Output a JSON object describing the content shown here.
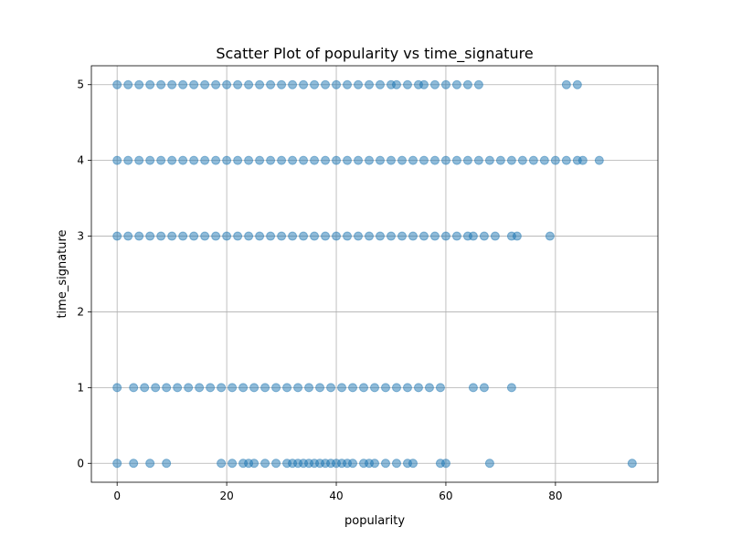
{
  "chart_data": {
    "type": "scatter",
    "title": "Scatter Plot of popularity vs time_signature",
    "xlabel": "popularity",
    "ylabel": "time_signature",
    "xlim": [
      -4.7,
      98.7
    ],
    "ylim": [
      -0.25,
      5.25
    ],
    "xticks": [
      0,
      20,
      40,
      60,
      80
    ],
    "yticks": [
      0,
      1,
      2,
      3,
      4,
      5
    ],
    "grid": true,
    "colors": {
      "marker": "#1f77b4",
      "grid": "#b0b0b0"
    },
    "marker_alpha": 0.5,
    "series": [
      {
        "points": [
          [
            0,
            5
          ],
          [
            2,
            5
          ],
          [
            4,
            5
          ],
          [
            6,
            5
          ],
          [
            8,
            5
          ],
          [
            10,
            5
          ],
          [
            12,
            5
          ],
          [
            14,
            5
          ],
          [
            16,
            5
          ],
          [
            18,
            5
          ],
          [
            20,
            5
          ],
          [
            22,
            5
          ],
          [
            24,
            5
          ],
          [
            26,
            5
          ],
          [
            28,
            5
          ],
          [
            30,
            5
          ],
          [
            32,
            5
          ],
          [
            34,
            5
          ],
          [
            36,
            5
          ],
          [
            38,
            5
          ],
          [
            40,
            5
          ],
          [
            42,
            5
          ],
          [
            44,
            5
          ],
          [
            46,
            5
          ],
          [
            48,
            5
          ],
          [
            50,
            5
          ],
          [
            51,
            5
          ],
          [
            53,
            5
          ],
          [
            55,
            5
          ],
          [
            56,
            5
          ],
          [
            58,
            5
          ],
          [
            60,
            5
          ],
          [
            62,
            5
          ],
          [
            64,
            5
          ],
          [
            66,
            5
          ],
          [
            82,
            5
          ],
          [
            84,
            5
          ],
          [
            0,
            4
          ],
          [
            2,
            4
          ],
          [
            4,
            4
          ],
          [
            6,
            4
          ],
          [
            8,
            4
          ],
          [
            10,
            4
          ],
          [
            12,
            4
          ],
          [
            14,
            4
          ],
          [
            16,
            4
          ],
          [
            18,
            4
          ],
          [
            20,
            4
          ],
          [
            22,
            4
          ],
          [
            24,
            4
          ],
          [
            26,
            4
          ],
          [
            28,
            4
          ],
          [
            30,
            4
          ],
          [
            32,
            4
          ],
          [
            34,
            4
          ],
          [
            36,
            4
          ],
          [
            38,
            4
          ],
          [
            40,
            4
          ],
          [
            42,
            4
          ],
          [
            44,
            4
          ],
          [
            46,
            4
          ],
          [
            48,
            4
          ],
          [
            50,
            4
          ],
          [
            52,
            4
          ],
          [
            54,
            4
          ],
          [
            56,
            4
          ],
          [
            58,
            4
          ],
          [
            60,
            4
          ],
          [
            62,
            4
          ],
          [
            64,
            4
          ],
          [
            66,
            4
          ],
          [
            68,
            4
          ],
          [
            70,
            4
          ],
          [
            72,
            4
          ],
          [
            74,
            4
          ],
          [
            76,
            4
          ],
          [
            78,
            4
          ],
          [
            80,
            4
          ],
          [
            82,
            4
          ],
          [
            84,
            4
          ],
          [
            85,
            4
          ],
          [
            88,
            4
          ],
          [
            0,
            3
          ],
          [
            2,
            3
          ],
          [
            4,
            3
          ],
          [
            6,
            3
          ],
          [
            8,
            3
          ],
          [
            10,
            3
          ],
          [
            12,
            3
          ],
          [
            14,
            3
          ],
          [
            16,
            3
          ],
          [
            18,
            3
          ],
          [
            20,
            3
          ],
          [
            22,
            3
          ],
          [
            24,
            3
          ],
          [
            26,
            3
          ],
          [
            28,
            3
          ],
          [
            30,
            3
          ],
          [
            32,
            3
          ],
          [
            34,
            3
          ],
          [
            36,
            3
          ],
          [
            38,
            3
          ],
          [
            40,
            3
          ],
          [
            42,
            3
          ],
          [
            44,
            3
          ],
          [
            46,
            3
          ],
          [
            48,
            3
          ],
          [
            50,
            3
          ],
          [
            52,
            3
          ],
          [
            54,
            3
          ],
          [
            56,
            3
          ],
          [
            58,
            3
          ],
          [
            60,
            3
          ],
          [
            62,
            3
          ],
          [
            64,
            3
          ],
          [
            65,
            3
          ],
          [
            67,
            3
          ],
          [
            69,
            3
          ],
          [
            72,
            3
          ],
          [
            73,
            3
          ],
          [
            79,
            3
          ],
          [
            0,
            1
          ],
          [
            3,
            1
          ],
          [
            5,
            1
          ],
          [
            7,
            1
          ],
          [
            9,
            1
          ],
          [
            11,
            1
          ],
          [
            13,
            1
          ],
          [
            15,
            1
          ],
          [
            17,
            1
          ],
          [
            19,
            1
          ],
          [
            21,
            1
          ],
          [
            23,
            1
          ],
          [
            25,
            1
          ],
          [
            27,
            1
          ],
          [
            29,
            1
          ],
          [
            31,
            1
          ],
          [
            33,
            1
          ],
          [
            35,
            1
          ],
          [
            37,
            1
          ],
          [
            39,
            1
          ],
          [
            41,
            1
          ],
          [
            43,
            1
          ],
          [
            45,
            1
          ],
          [
            47,
            1
          ],
          [
            49,
            1
          ],
          [
            51,
            1
          ],
          [
            53,
            1
          ],
          [
            55,
            1
          ],
          [
            57,
            1
          ],
          [
            59,
            1
          ],
          [
            65,
            1
          ],
          [
            67,
            1
          ],
          [
            72,
            1
          ],
          [
            0,
            0
          ],
          [
            3,
            0
          ],
          [
            6,
            0
          ],
          [
            9,
            0
          ],
          [
            19,
            0
          ],
          [
            21,
            0
          ],
          [
            23,
            0
          ],
          [
            24,
            0
          ],
          [
            25,
            0
          ],
          [
            27,
            0
          ],
          [
            29,
            0
          ],
          [
            31,
            0
          ],
          [
            32,
            0
          ],
          [
            33,
            0
          ],
          [
            34,
            0
          ],
          [
            35,
            0
          ],
          [
            36,
            0
          ],
          [
            37,
            0
          ],
          [
            38,
            0
          ],
          [
            39,
            0
          ],
          [
            40,
            0
          ],
          [
            41,
            0
          ],
          [
            42,
            0
          ],
          [
            43,
            0
          ],
          [
            45,
            0
          ],
          [
            46,
            0
          ],
          [
            47,
            0
          ],
          [
            49,
            0
          ],
          [
            51,
            0
          ],
          [
            53,
            0
          ],
          [
            54,
            0
          ],
          [
            59,
            0
          ],
          [
            60,
            0
          ],
          [
            68,
            0
          ],
          [
            94,
            0
          ]
        ]
      }
    ]
  }
}
